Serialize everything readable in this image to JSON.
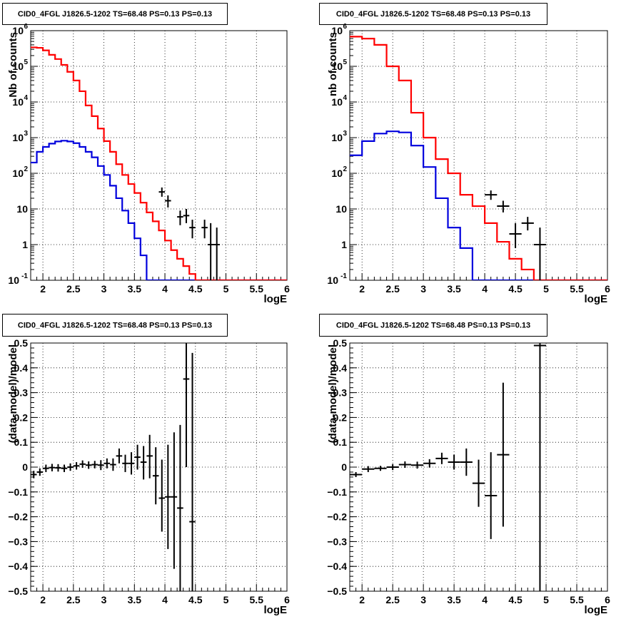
{
  "chart_data": [
    {
      "type": "step",
      "title": "CID0_4FGL J1826.5-1202 TS=68.48 PS=0.13 PS=0.13",
      "xlabel": "logE",
      "ylabel": "Nb of counts",
      "xlim": [
        1.8,
        6.0
      ],
      "ylim": [
        0.1,
        1000000
      ],
      "yscale": "log",
      "grid": true,
      "bin_width": 0.1,
      "bin_edges_start": 1.8,
      "xticks": [
        "2",
        "2.5",
        "3",
        "3.5",
        "4",
        "4.5",
        "5",
        "5.5",
        "6"
      ],
      "yticks": [
        {
          "v": 0.1,
          "l": "10",
          "e": "-1"
        },
        {
          "v": 1,
          "l": "1",
          "e": ""
        },
        {
          "v": 10,
          "l": "10",
          "e": ""
        },
        {
          "v": 100,
          "l": "10",
          "e": "2"
        },
        {
          "v": 1000,
          "l": "10",
          "e": "3"
        },
        {
          "v": 10000,
          "l": "10",
          "e": "4"
        },
        {
          "v": 100000,
          "l": "10",
          "e": "5"
        },
        {
          "v": 1000000,
          "l": "10",
          "e": "6"
        }
      ],
      "series": [
        {
          "color": "#ff0000",
          "values": [
            340000,
            330000,
            280000,
            210000,
            160000,
            110000,
            70000,
            40000,
            20000,
            8000,
            4000,
            1800,
            800,
            400,
            180,
            90,
            50,
            28,
            15,
            8,
            4.5,
            2.5,
            1.3,
            0.7,
            0.4,
            0.25,
            0.15,
            0.1,
            0.1,
            0.1,
            0.1,
            0.1,
            0.1,
            0.1,
            0.1,
            0.1,
            0.1,
            0.1,
            0.1,
            0.1,
            0.1,
            0.1
          ]
        },
        {
          "color": "#0000dd",
          "values": [
            200,
            400,
            550,
            680,
            780,
            820,
            780,
            700,
            550,
            400,
            280,
            160,
            90,
            45,
            20,
            9,
            4,
            1.5,
            0.5,
            0.1,
            0.1,
            0.1,
            0.1,
            0.1,
            0.1,
            0.1,
            0.1,
            0.1,
            0.1,
            0.1,
            0.1,
            0.1,
            0.1,
            0.1,
            0.1,
            0.1,
            0.1,
            0.1,
            0.1,
            0.1,
            0.1,
            0.1
          ]
        }
      ],
      "points": [
        {
          "x": 3.95,
          "y": 30,
          "lo": 22,
          "hi": 40,
          "xerr": 0.05
        },
        {
          "x": 4.05,
          "y": 17,
          "lo": 11,
          "hi": 24,
          "xerr": 0.05
        },
        {
          "x": 4.25,
          "y": 6,
          "lo": 3.5,
          "hi": 9,
          "xerr": 0.05
        },
        {
          "x": 4.35,
          "y": 6.5,
          "lo": 4,
          "hi": 10,
          "xerr": 0.05
        },
        {
          "x": 4.45,
          "y": 3,
          "lo": 1.5,
          "hi": 5,
          "xerr": 0.05
        },
        {
          "x": 4.65,
          "y": 3,
          "lo": 1.5,
          "hi": 5,
          "xerr": 0.05
        },
        {
          "x": 4.75,
          "y": 1,
          "lo": 0.1,
          "hi": 4,
          "xerr": 0.05
        },
        {
          "x": 4.85,
          "y": 1,
          "lo": 0.1,
          "hi": 3,
          "xerr": 0.05
        }
      ]
    },
    {
      "type": "step",
      "title": "CID0_4FGL J1826.5-1202 TS=68.48 PS=0.13 PS=0.13",
      "xlabel": "logE",
      "ylabel": "nb of counts",
      "xlim": [
        1.8,
        6.0
      ],
      "ylim": [
        0.1,
        1000000
      ],
      "yscale": "log",
      "grid": true,
      "bin_width": 0.2,
      "bin_edges_start": 1.8,
      "xticks": [
        "2",
        "2.5",
        "3",
        "3.5",
        "4",
        "4.5",
        "5",
        "5.5",
        "6"
      ],
      "yticks": [
        {
          "v": 0.1,
          "l": "10",
          "e": "-1"
        },
        {
          "v": 1,
          "l": "1",
          "e": ""
        },
        {
          "v": 10,
          "l": "10",
          "e": ""
        },
        {
          "v": 100,
          "l": "10",
          "e": "2"
        },
        {
          "v": 1000,
          "l": "10",
          "e": "3"
        },
        {
          "v": 10000,
          "l": "10",
          "e": "4"
        },
        {
          "v": 100000,
          "l": "10",
          "e": "5"
        },
        {
          "v": 1000000,
          "l": "10",
          "e": "6"
        }
      ],
      "series": [
        {
          "color": "#ff0000",
          "values": [
            680000,
            600000,
            400000,
            100000,
            40000,
            5000,
            1000,
            250,
            100,
            25,
            12,
            4,
            1.2,
            0.4,
            0.2,
            0.1,
            0.1,
            0.1,
            0.1,
            0.1,
            0.1
          ]
        },
        {
          "color": "#0000dd",
          "values": [
            320,
            800,
            1300,
            1500,
            1400,
            600,
            150,
            20,
            3,
            0.8,
            0.1,
            0.1,
            0.1,
            0.1,
            0.1,
            0.1,
            0.1,
            0.1,
            0.1,
            0.1,
            0.1
          ]
        }
      ],
      "points": [
        {
          "x": 4.1,
          "y": 25,
          "lo": 18,
          "hi": 33,
          "xerr": 0.1
        },
        {
          "x": 4.3,
          "y": 12,
          "lo": 8,
          "hi": 17,
          "xerr": 0.1
        },
        {
          "x": 4.5,
          "y": 2,
          "lo": 0.8,
          "hi": 4,
          "xerr": 0.1
        },
        {
          "x": 4.7,
          "y": 4,
          "lo": 2.5,
          "hi": 6,
          "xerr": 0.1
        },
        {
          "x": 4.9,
          "y": 1,
          "lo": 0.1,
          "hi": 3,
          "xerr": 0.1
        }
      ]
    },
    {
      "type": "scatter",
      "title": "CID0_4FGL J1826.5-1202 TS=68.48 PS=0.13 PS=0.13",
      "xlabel": "logE",
      "ylabel": "(data-model)/model",
      "xlim": [
        1.8,
        6.0
      ],
      "ylim": [
        -0.5,
        0.5
      ],
      "yscale": "linear",
      "grid": true,
      "xticks": [
        "2",
        "2.5",
        "3",
        "3.5",
        "4",
        "4.5",
        "5",
        "5.5",
        "6"
      ],
      "yticks": [
        {
          "v": -0.5,
          "l": "−0.5"
        },
        {
          "v": -0.4,
          "l": "−0.4"
        },
        {
          "v": -0.3,
          "l": "−0.3"
        },
        {
          "v": -0.2,
          "l": "−0.2"
        },
        {
          "v": -0.1,
          "l": "−0.1"
        },
        {
          "v": 0,
          "l": "0"
        },
        {
          "v": 0.1,
          "l": "0.1"
        },
        {
          "v": 0.2,
          "l": "0.2"
        },
        {
          "v": 0.3,
          "l": "0.3"
        },
        {
          "v": 0.4,
          "l": "0.4"
        },
        {
          "v": 0.5,
          "l": "0.5"
        }
      ],
      "points": [
        {
          "x": 1.85,
          "y": -0.03,
          "lo": -0.045,
          "hi": -0.015,
          "xerr": 0.05
        },
        {
          "x": 1.95,
          "y": -0.02,
          "lo": -0.035,
          "hi": -0.005,
          "xerr": 0.05
        },
        {
          "x": 2.05,
          "y": -0.005,
          "lo": -0.02,
          "hi": 0.01,
          "xerr": 0.05
        },
        {
          "x": 2.15,
          "y": -0.002,
          "lo": -0.017,
          "hi": 0.013,
          "xerr": 0.05
        },
        {
          "x": 2.25,
          "y": -0.003,
          "lo": -0.018,
          "hi": 0.012,
          "xerr": 0.05
        },
        {
          "x": 2.35,
          "y": -0.005,
          "lo": -0.02,
          "hi": 0.01,
          "xerr": 0.05
        },
        {
          "x": 2.45,
          "y": 0.0,
          "lo": -0.015,
          "hi": 0.015,
          "xerr": 0.05
        },
        {
          "x": 2.55,
          "y": 0.005,
          "lo": -0.01,
          "hi": 0.02,
          "xerr": 0.05
        },
        {
          "x": 2.65,
          "y": 0.012,
          "lo": -0.003,
          "hi": 0.027,
          "xerr": 0.05
        },
        {
          "x": 2.75,
          "y": 0.008,
          "lo": -0.007,
          "hi": 0.023,
          "xerr": 0.05
        },
        {
          "x": 2.85,
          "y": 0.01,
          "lo": -0.005,
          "hi": 0.025,
          "xerr": 0.05
        },
        {
          "x": 2.95,
          "y": 0.008,
          "lo": -0.012,
          "hi": 0.028,
          "xerr": 0.05
        },
        {
          "x": 3.05,
          "y": 0.015,
          "lo": -0.005,
          "hi": 0.035,
          "xerr": 0.05
        },
        {
          "x": 3.15,
          "y": 0.01,
          "lo": -0.015,
          "hi": 0.035,
          "xerr": 0.05
        },
        {
          "x": 3.25,
          "y": 0.045,
          "lo": 0.015,
          "hi": 0.075,
          "xerr": 0.05
        },
        {
          "x": 3.35,
          "y": 0.015,
          "lo": -0.02,
          "hi": 0.05,
          "xerr": 0.05
        },
        {
          "x": 3.45,
          "y": 0.015,
          "lo": -0.03,
          "hi": 0.06,
          "xerr": 0.05
        },
        {
          "x": 3.55,
          "y": 0.04,
          "lo": -0.01,
          "hi": 0.09,
          "xerr": 0.05
        },
        {
          "x": 3.65,
          "y": 0.02,
          "lo": -0.05,
          "hi": 0.085,
          "xerr": 0.05
        },
        {
          "x": 3.75,
          "y": 0.045,
          "lo": -0.045,
          "hi": 0.13,
          "xerr": 0.05
        },
        {
          "x": 3.85,
          "y": -0.035,
          "lo": -0.15,
          "hi": 0.08,
          "xerr": 0.05
        },
        {
          "x": 3.95,
          "y": -0.125,
          "lo": -0.26,
          "hi": 0.03,
          "xerr": 0.05
        },
        {
          "x": 4.05,
          "y": -0.12,
          "lo": -0.33,
          "hi": 0.09,
          "xerr": 0.05
        },
        {
          "x": 4.15,
          "y": -0.12,
          "lo": -0.41,
          "hi": 0.14,
          "xerr": 0.05
        },
        {
          "x": 4.25,
          "y": -0.165,
          "lo": -0.5,
          "hi": 0.17,
          "xerr": 0.05
        },
        {
          "x": 4.35,
          "y": 0.355,
          "lo": 0.0,
          "hi": 0.5,
          "xerr": 0.05
        },
        {
          "x": 4.45,
          "y": -0.22,
          "lo": -0.5,
          "hi": 0.46,
          "xerr": 0.05
        }
      ]
    },
    {
      "type": "scatter",
      "title": "CID0_4FGL J1826.5-1202 TS=68.48 PS=0.13 PS=0.13",
      "xlabel": "logE",
      "ylabel": "(data-model)/model",
      "xlim": [
        1.8,
        6.0
      ],
      "ylim": [
        -0.5,
        0.5
      ],
      "yscale": "linear",
      "grid": true,
      "xticks": [
        "2",
        "2.5",
        "3",
        "3.5",
        "4",
        "4.5",
        "5",
        "5.5",
        "6"
      ],
      "yticks": [
        {
          "v": -0.5,
          "l": "−0.5"
        },
        {
          "v": -0.4,
          "l": "−0.4"
        },
        {
          "v": -0.3,
          "l": "−0.3"
        },
        {
          "v": -0.2,
          "l": "−0.2"
        },
        {
          "v": -0.1,
          "l": "−0.1"
        },
        {
          "v": 0,
          "l": "0"
        },
        {
          "v": 0.1,
          "l": "0.1"
        },
        {
          "v": 0.2,
          "l": "0.2"
        },
        {
          "v": 0.3,
          "l": "0.3"
        },
        {
          "v": 0.4,
          "l": "0.4"
        },
        {
          "v": 0.5,
          "l": "0.5"
        }
      ],
      "points": [
        {
          "x": 1.9,
          "y": -0.03,
          "lo": -0.04,
          "hi": -0.02,
          "xerr": 0.1
        },
        {
          "x": 2.1,
          "y": -0.008,
          "lo": -0.02,
          "hi": 0.004,
          "xerr": 0.1
        },
        {
          "x": 2.3,
          "y": -0.005,
          "lo": -0.015,
          "hi": 0.005,
          "xerr": 0.1
        },
        {
          "x": 2.5,
          "y": 0.0,
          "lo": -0.012,
          "hi": 0.012,
          "xerr": 0.1
        },
        {
          "x": 2.7,
          "y": 0.01,
          "lo": -0.003,
          "hi": 0.023,
          "xerr": 0.1
        },
        {
          "x": 2.9,
          "y": 0.008,
          "lo": -0.006,
          "hi": 0.022,
          "xerr": 0.1
        },
        {
          "x": 3.1,
          "y": 0.015,
          "lo": -0.002,
          "hi": 0.032,
          "xerr": 0.1
        },
        {
          "x": 3.3,
          "y": 0.035,
          "lo": 0.012,
          "hi": 0.058,
          "xerr": 0.1
        },
        {
          "x": 3.5,
          "y": 0.02,
          "lo": -0.01,
          "hi": 0.05,
          "xerr": 0.1
        },
        {
          "x": 3.7,
          "y": 0.02,
          "lo": -0.035,
          "hi": 0.075,
          "xerr": 0.1
        },
        {
          "x": 3.9,
          "y": -0.065,
          "lo": -0.16,
          "hi": 0.03,
          "xerr": 0.1
        },
        {
          "x": 4.1,
          "y": -0.115,
          "lo": -0.29,
          "hi": 0.06,
          "xerr": 0.1
        },
        {
          "x": 4.3,
          "y": 0.05,
          "lo": -0.24,
          "hi": 0.34,
          "xerr": 0.1
        },
        {
          "x": 4.9,
          "y": 0.49,
          "lo": -0.5,
          "hi": 0.5,
          "xerr": 0.1
        }
      ]
    }
  ]
}
